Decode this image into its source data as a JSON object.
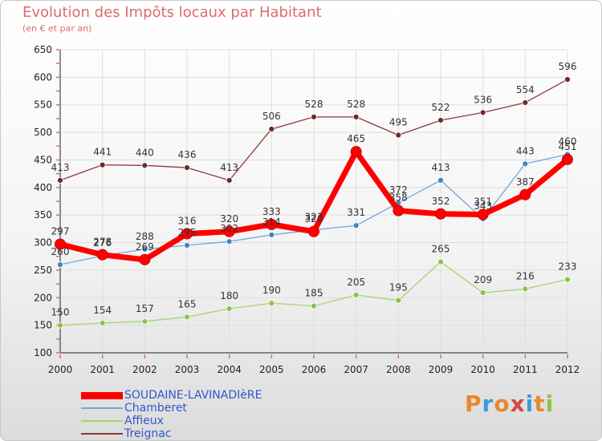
{
  "title": "Evolution des Impôts locaux par Habitant",
  "subtitle": "(en € et par an)",
  "logo": "Proxiti",
  "chart_data": {
    "type": "line",
    "title": "Evolution des Impôts locaux par Habitant",
    "subtitle": "(en € et par an)",
    "xlabel": "",
    "ylabel": "",
    "x": [
      2000,
      2001,
      2002,
      2003,
      2004,
      2005,
      2006,
      2007,
      2008,
      2009,
      2010,
      2011,
      2012
    ],
    "ylim": [
      100,
      650
    ],
    "yticks": [
      100,
      150,
      200,
      250,
      300,
      350,
      400,
      450,
      500,
      550,
      600,
      650
    ],
    "grid": true,
    "legend_position": "bottom-left",
    "series": [
      {
        "name": "SOUDAINE-LAVINADIèRE",
        "color": "#ff0000",
        "marker": "#ff0000",
        "width": 7,
        "values": [
          297,
          278,
          269,
          316,
          320,
          333,
          320,
          465,
          358,
          352,
          351,
          387,
          451
        ]
      },
      {
        "name": "Chamberet",
        "color": "#6fa8dc",
        "marker": "#3d85c6",
        "width": 1.3,
        "values": [
          260,
          276,
          288,
          295,
          302,
          314,
          323,
          331,
          372,
          413,
          343,
          443,
          460
        ]
      },
      {
        "name": "Affieux",
        "color": "#a4d66a",
        "marker": "#8bc34a",
        "width": 1.3,
        "values": [
          150,
          154,
          157,
          165,
          180,
          190,
          185,
          205,
          195,
          265,
          209,
          216,
          233
        ]
      },
      {
        "name": "Treignac",
        "color": "#8b3a3a",
        "marker": "#6d2a2a",
        "width": 1.3,
        "values": [
          413,
          441,
          440,
          436,
          413,
          506,
          528,
          528,
          495,
          522,
          536,
          554,
          596
        ]
      }
    ]
  }
}
